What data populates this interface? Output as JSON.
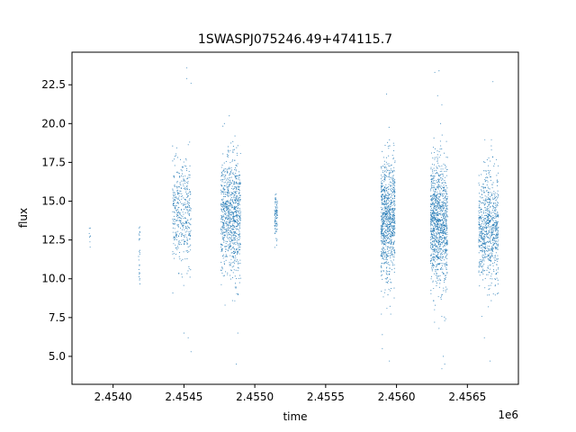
{
  "chart_data": {
    "type": "scatter",
    "title": "1SWASPJ075246.49+474115.7",
    "xlabel": "time",
    "ylabel": "flux",
    "x_offset_label": "1e6",
    "xlim": [
      2.45371,
      2.45686
    ],
    "ylim": [
      3.2,
      24.6
    ],
    "x_ticks": [
      2.454,
      2.4545,
      2.455,
      2.4555,
      2.456,
      2.4565
    ],
    "x_tick_labels": [
      "2.4540",
      "2.4545",
      "2.4550",
      "2.4555",
      "2.4560",
      "2.4565"
    ],
    "y_ticks": [
      5.0,
      7.5,
      10.0,
      12.5,
      15.0,
      17.5,
      20.0,
      22.5
    ],
    "y_tick_labels": [
      "5.0",
      "7.5",
      "10.0",
      "12.5",
      "15.0",
      "17.5",
      "20.0",
      "22.5"
    ],
    "grid": false,
    "marker_color": "#1f77b4",
    "series": [
      {
        "points_note": "observing seasons (time in units of 1e6 days, flux)",
        "clusters": [
          {
            "x_range": [
              2.45383,
              2.45384
            ],
            "y_center": 13.0,
            "y_spread": 0.6,
            "count": 8
          },
          {
            "x_range": [
              2.45418,
              2.45419
            ],
            "y_center": 11.8,
            "y_spread": 1.2,
            "count": 25
          },
          {
            "x_range": [
              2.45442,
              2.45455
            ],
            "y_center": 14.2,
            "y_spread": 1.6,
            "count": 420
          },
          {
            "x_range": [
              2.45476,
              2.4549
            ],
            "y_center": 14.0,
            "y_spread": 1.9,
            "count": 900
          },
          {
            "x_range": [
              2.45514,
              2.45516
            ],
            "y_center": 14.0,
            "y_spread": 0.7,
            "count": 90
          },
          {
            "x_range": [
              2.45589,
              2.45599
            ],
            "y_center": 13.8,
            "y_spread": 1.9,
            "count": 900
          },
          {
            "x_range": [
              2.45624,
              2.45636
            ],
            "y_center": 13.6,
            "y_spread": 2.0,
            "count": 1100
          },
          {
            "x_range": [
              2.45658,
              2.45672
            ],
            "y_center": 13.2,
            "y_spread": 1.8,
            "count": 800
          }
        ],
        "outliers": [
          [
            2.45452,
            23.6
          ],
          [
            2.45452,
            22.9
          ],
          [
            2.45455,
            22.6
          ],
          [
            2.4545,
            6.5
          ],
          [
            2.45453,
            6.2
          ],
          [
            2.45455,
            5.3
          ],
          [
            2.45482,
            20.5
          ],
          [
            2.45486,
            19.2
          ],
          [
            2.45488,
            6.5
          ],
          [
            2.45487,
            4.5
          ],
          [
            2.45479,
            8.3
          ],
          [
            2.45593,
            21.9
          ],
          [
            2.45592,
            18.6
          ],
          [
            2.4559,
            6.4
          ],
          [
            2.4559,
            5.5
          ],
          [
            2.45595,
            4.7
          ],
          [
            2.45627,
            23.3
          ],
          [
            2.4563,
            23.4
          ],
          [
            2.45629,
            21.8
          ],
          [
            2.45632,
            21.2
          ],
          [
            2.4563,
            6.8
          ],
          [
            2.45633,
            5.0
          ],
          [
            2.45634,
            4.5
          ],
          [
            2.45632,
            4.2
          ],
          [
            2.45634,
            7.3
          ],
          [
            2.45668,
            22.7
          ],
          [
            2.45667,
            18.3
          ],
          [
            2.45666,
            4.7
          ],
          [
            2.45662,
            6.2
          ]
        ]
      }
    ]
  }
}
